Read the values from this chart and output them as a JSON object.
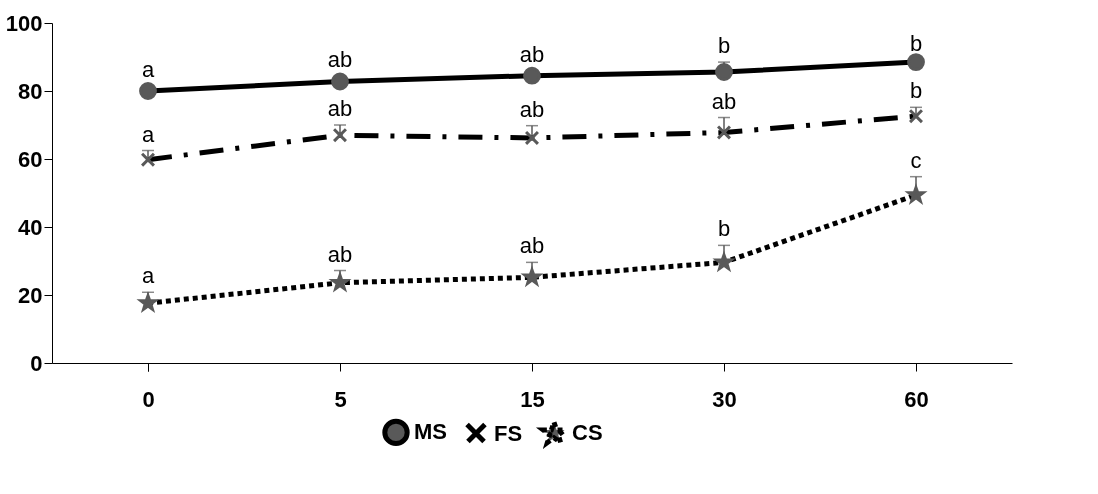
{
  "chart_data": {
    "type": "line",
    "categories": [
      "0",
      "5",
      "15",
      "30",
      "60"
    ],
    "series": [
      {
        "name": "MS",
        "color": "#000000",
        "marker": "circle",
        "line_style": "solid",
        "values": [
          80,
          82.8,
          84.5,
          85.6,
          88.5
        ],
        "errors": [
          [
            80,
            81.5
          ],
          [
            82.8,
            84.5
          ],
          [
            84.5,
            86
          ],
          [
            85.6,
            88.5
          ],
          [
            88.5,
            89
          ]
        ]
      },
      {
        "name": "FS",
        "color": "#000000",
        "marker": "cross",
        "line_style": "dashed",
        "values": [
          59.8,
          67,
          66.2,
          67.8,
          72.6
        ],
        "errors": [
          [
            59.8,
            62.5
          ],
          [
            67,
            70
          ],
          [
            66.2,
            69.8
          ],
          [
            67.8,
            72.2
          ],
          [
            72.6,
            75.2
          ]
        ]
      },
      {
        "name": "CS",
        "color": "#000000",
        "marker": "star",
        "line_style": "dotted",
        "values": [
          17.6,
          23.6,
          25.2,
          29.6,
          49.4
        ],
        "errors": [
          [
            17.6,
            20.8
          ],
          [
            23.6,
            27.2
          ],
          [
            25.2,
            29.6
          ],
          [
            29.6,
            34.6
          ],
          [
            49.4,
            54.8
          ]
        ]
      }
    ],
    "ylim": [
      0,
      100
    ],
    "yticks": [
      0,
      20,
      40,
      60,
      80,
      100
    ],
    "grid": false,
    "legend": "bottom",
    "annotations": [
      {
        "text": "a",
        "x": "0",
        "y": 80
      },
      {
        "text": "ab",
        "x": "5",
        "y": 82.8
      },
      {
        "text": "ab",
        "x": "15",
        "y": 84.5
      },
      {
        "text": "b",
        "x": "30",
        "y": 85.6
      },
      {
        "text": "b",
        "x": "60",
        "y": 88.5
      },
      {
        "text": "a",
        "x": "0",
        "y": 59.8
      },
      {
        "text": "ab",
        "x": "5",
        "y": 67
      },
      {
        "text": "ab",
        "x": "15",
        "y": 66.2
      },
      {
        "text": "ab",
        "x": "30",
        "y": 67.8
      },
      {
        "text": "b",
        "x": "60",
        "y": 72.6
      },
      {
        "text": "a",
        "x": "0",
        "y": 17.6
      },
      {
        "text": "ab",
        "x": "5",
        "y": 23.6
      },
      {
        "text": "ab",
        "x": "15",
        "y": 25.2
      },
      {
        "text": "b",
        "x": "30",
        "y": 29.6
      },
      {
        "text": "c",
        "x": "60",
        "y": 49.4
      }
    ]
  }
}
